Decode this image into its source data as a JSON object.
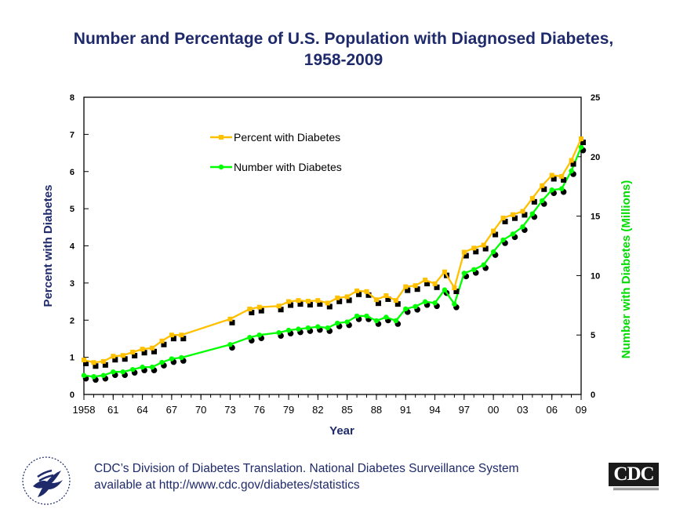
{
  "title_line1": "Number and Percentage of U.S. Population with Diagnosed Diabetes,",
  "title_line2": "1958-2009",
  "footer": {
    "line1": "CDC’s Division of Diabetes Translation.  National Diabetes Surveillance System",
    "line2": "available at http://www.cdc.gov/diabetes/statistics"
  },
  "logos": {
    "cdc_text": "CDC"
  },
  "chart_data": {
    "type": "line",
    "xlabel": "Year",
    "ylabel_left": "Percent with Diabetes",
    "ylabel_right": "Number with Diabetes (Millions)",
    "xlim": [
      1958,
      2009
    ],
    "ylim_left": [
      0,
      8
    ],
    "ylim_right": [
      0,
      25
    ],
    "x_ticks": [
      1958,
      1961,
      1964,
      1967,
      1970,
      1973,
      1976,
      1979,
      1982,
      1985,
      1988,
      1991,
      1994,
      1997,
      2000,
      2003,
      2006,
      2009
    ],
    "x_tick_labels": [
      "1958",
      "61",
      "64",
      "67",
      "70",
      "73",
      "76",
      "79",
      "82",
      "85",
      "88",
      "91",
      "94",
      "97",
      "00",
      "03",
      "06",
      "09"
    ],
    "y_ticks_left": [
      0,
      1,
      2,
      3,
      4,
      5,
      6,
      7,
      8
    ],
    "y_ticks_right": [
      0,
      5,
      10,
      15,
      20,
      25
    ],
    "legend_position": "upper-left-inside",
    "colors": {
      "percent": "#ffc000",
      "number": "#00ff00",
      "axis_text": "#1f2a6b",
      "right_axis_label": "#00dd00"
    },
    "series": [
      {
        "name": "Percent with Diabetes",
        "axis": "left",
        "marker": "square",
        "x": [
          1958,
          1959,
          1960,
          1961,
          1962,
          1963,
          1964,
          1965,
          1966,
          1967,
          1968,
          1973,
          1975,
          1976,
          1978,
          1979,
          1980,
          1981,
          1982,
          1983,
          1984,
          1985,
          1986,
          1987,
          1988,
          1989,
          1990,
          1991,
          1992,
          1993,
          1994,
          1995,
          1996,
          1997,
          1998,
          1999,
          2000,
          2001,
          2002,
          2003,
          2004,
          2005,
          2006,
          2007,
          2008,
          2009
        ],
        "values": [
          0.93,
          0.86,
          0.89,
          1.03,
          1.05,
          1.14,
          1.22,
          1.25,
          1.44,
          1.6,
          1.6,
          2.03,
          2.3,
          2.35,
          2.38,
          2.5,
          2.53,
          2.51,
          2.53,
          2.46,
          2.6,
          2.63,
          2.79,
          2.77,
          2.55,
          2.66,
          2.53,
          2.9,
          2.93,
          3.08,
          2.98,
          3.3,
          2.87,
          3.83,
          3.94,
          4.02,
          4.4,
          4.75,
          4.84,
          4.93,
          5.28,
          5.62,
          5.9,
          5.87,
          6.3,
          6.88
        ]
      },
      {
        "name": "Number with Diabetes",
        "axis": "right",
        "marker": "circle",
        "x": [
          1958,
          1959,
          1960,
          1961,
          1962,
          1963,
          1964,
          1965,
          1966,
          1967,
          1968,
          1973,
          1975,
          1976,
          1978,
          1979,
          1980,
          1981,
          1982,
          1983,
          1984,
          1985,
          1986,
          1987,
          1988,
          1989,
          1990,
          1991,
          1992,
          1993,
          1994,
          1995,
          1996,
          1997,
          1998,
          1999,
          2000,
          2001,
          2002,
          2003,
          2004,
          2005,
          2006,
          2007,
          2008,
          2009
        ],
        "values": [
          1.6,
          1.5,
          1.6,
          1.9,
          1.9,
          2.1,
          2.3,
          2.3,
          2.7,
          3.0,
          3.1,
          4.2,
          4.8,
          5.0,
          5.2,
          5.4,
          5.5,
          5.6,
          5.7,
          5.6,
          6.0,
          6.1,
          6.6,
          6.6,
          6.2,
          6.5,
          6.2,
          7.2,
          7.4,
          7.8,
          7.7,
          8.8,
          7.6,
          10.2,
          10.5,
          10.9,
          12.0,
          13.0,
          13.5,
          14.1,
          15.2,
          16.3,
          17.2,
          17.3,
          18.8,
          20.8
        ]
      }
    ]
  }
}
